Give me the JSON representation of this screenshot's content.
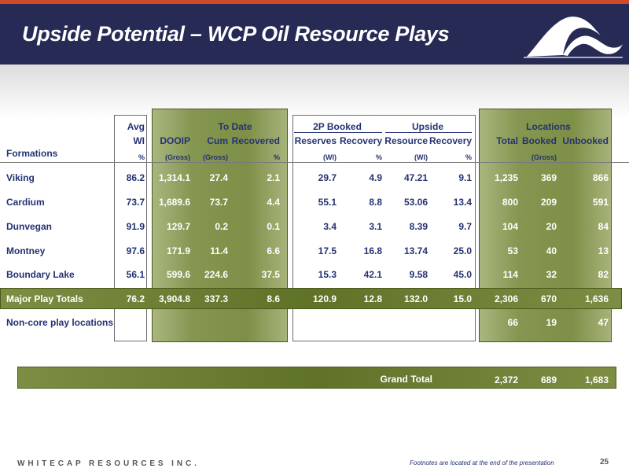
{
  "title": "Upside Potential – WCP Oil Resource Plays",
  "headers": {
    "avg": "Avg",
    "wi": "WI",
    "to_date": "To Date",
    "booked_2p": "2P Booked",
    "upside": "Upside",
    "locations": "Locations",
    "formations": "Formations",
    "dooip": "DOOIP",
    "cum": "Cum",
    "recovered": "Recovered",
    "reserves": "Reserves",
    "recovery_2p": "Recovery",
    "resource": "Resource",
    "recovery_up": "Recovery",
    "total": "Total",
    "booked": "Booked",
    "unbooked": "Unbooked"
  },
  "subheaders": {
    "wi_pct": "%",
    "dooip_gross": "(Gross)",
    "cum_gross": "(Gross)",
    "rec_pct": "%",
    "res_wi": "(WI)",
    "rec2p_pct": "%",
    "resource_wi": "(WI)",
    "recup_pct": "%",
    "loc_gross": "(Gross)"
  },
  "rows": [
    {
      "name": "Viking",
      "wi": "86.2",
      "dooip": "1,314.1",
      "cum": "27.4",
      "recovered": "2.1",
      "reserves": "29.7",
      "rec2p": "4.9",
      "resource": "47.21",
      "recup": "9.1",
      "total": "1,235",
      "booked": "369",
      "unbooked": "866"
    },
    {
      "name": "Cardium",
      "wi": "73.7",
      "dooip": "1,689.6",
      "cum": "73.7",
      "recovered": "4.4",
      "reserves": "55.1",
      "rec2p": "8.8",
      "resource": "53.06",
      "recup": "13.4",
      "total": "800",
      "booked": "209",
      "unbooked": "591"
    },
    {
      "name": "Dunvegan",
      "wi": "91.9",
      "dooip": "129.7",
      "cum": "0.2",
      "recovered": "0.1",
      "reserves": "3.4",
      "rec2p": "3.1",
      "resource": "8.39",
      "recup": "9.7",
      "total": "104",
      "booked": "20",
      "unbooked": "84"
    },
    {
      "name": "Montney",
      "wi": "97.6",
      "dooip": "171.9",
      "cum": "11.4",
      "recovered": "6.6",
      "reserves": "17.5",
      "rec2p": "16.8",
      "resource": "13.74",
      "recup": "25.0",
      "total": "53",
      "booked": "40",
      "unbooked": "13"
    },
    {
      "name": "Boundary Lake",
      "wi": "56.1",
      "dooip": "599.6",
      "cum": "224.6",
      "recovered": "37.5",
      "reserves": "15.3",
      "rec2p": "42.1",
      "resource": "9.58",
      "recup": "45.0",
      "total": "114",
      "booked": "32",
      "unbooked": "82"
    }
  ],
  "totals": {
    "name": "Major Play Totals",
    "wi": "76.2",
    "dooip": "3,904.8",
    "cum": "337.3",
    "recovered": "8.6",
    "reserves": "120.9",
    "rec2p": "12.8",
    "resource": "132.0",
    "recup": "15.0",
    "total": "2,306",
    "booked": "670",
    "unbooked": "1,636"
  },
  "noncore": {
    "name": "Non-core play locations",
    "total": "66",
    "booked": "19",
    "unbooked": "47"
  },
  "grand": {
    "label": "Grand Total",
    "total": "2,372",
    "booked": "689",
    "unbooked": "1,683"
  },
  "footer": {
    "company": "WHITECAP RESOURCES INC.",
    "footnote": "Footnotes are located at the end of the presentation",
    "page": "25"
  },
  "colors": {
    "header_bg": "#262a55",
    "accent_stripe": "#d04a2a",
    "olive": "#7e8f47",
    "text_blue": "#243273"
  }
}
